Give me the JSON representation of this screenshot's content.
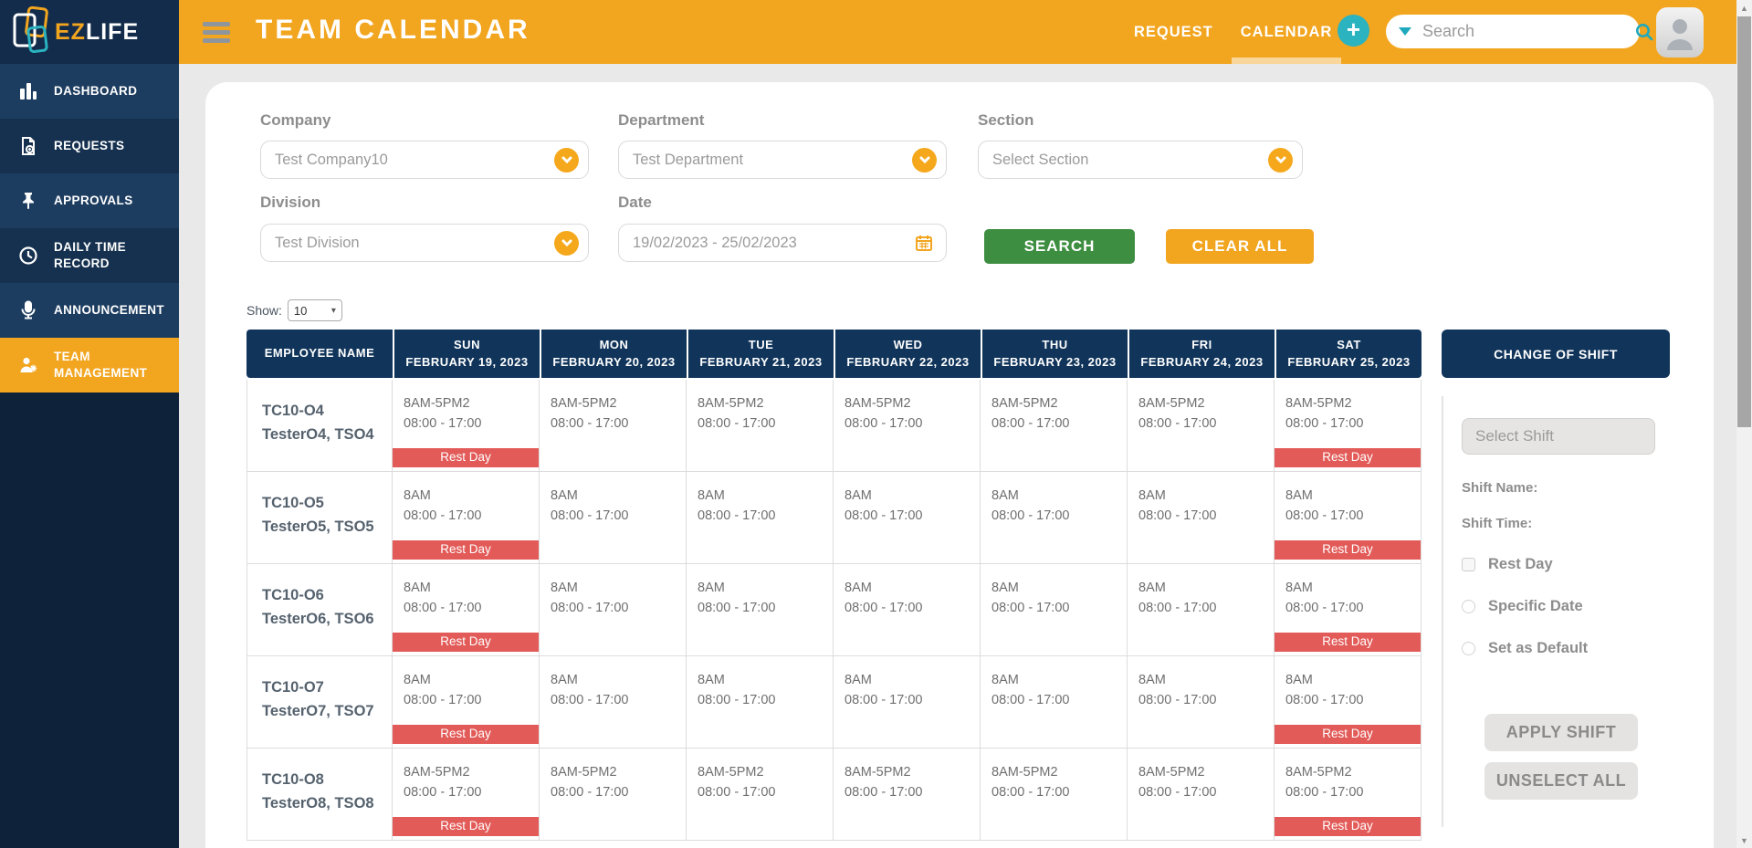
{
  "colors": {
    "orange": "#F2A51F",
    "navy": "#10345A",
    "teal": "#2BB3C0",
    "green": "#3E8E41",
    "red": "#E25B58",
    "sidebar_dark": "#0E2339"
  },
  "logo": {
    "ez": "EZ",
    "life": "LIFE"
  },
  "topbar": {
    "title": "TEAM CALENDAR",
    "nav": [
      {
        "label": "REQUEST",
        "active": false
      },
      {
        "label": "CALENDAR",
        "active": true
      }
    ],
    "add_button": "+",
    "search_placeholder": "Search"
  },
  "sidebar": {
    "items": [
      {
        "label": "DASHBOARD",
        "icon": "bar-chart-icon",
        "active": false
      },
      {
        "label": "REQUESTS",
        "icon": "document-add-icon",
        "active": false
      },
      {
        "label": "APPROVALS",
        "icon": "pin-icon",
        "active": false
      },
      {
        "label": "DAILY TIME RECORD",
        "icon": "clock-icon",
        "active": false
      },
      {
        "label": "ANNOUNCEMENT",
        "icon": "microphone-icon",
        "active": false
      },
      {
        "label": "TEAM MANAGEMENT",
        "icon": "user-gear-icon",
        "active": true
      }
    ]
  },
  "filters": {
    "company": {
      "label": "Company",
      "value": "Test Company10"
    },
    "department": {
      "label": "Department",
      "value": "Test Department"
    },
    "section": {
      "label": "Section",
      "value": "Select Section"
    },
    "division": {
      "label": "Division",
      "value": "Test Division"
    },
    "date": {
      "label": "Date",
      "value": "19/02/2023 - 25/02/2023"
    },
    "search_button": "SEARCH",
    "clear_button": "CLEAR ALL"
  },
  "show": {
    "label": "Show:",
    "value": "10"
  },
  "table": {
    "employee_header": "EMPLOYEE NAME",
    "rest_day_label": "Rest Day",
    "days": [
      {
        "day": "SUN",
        "date": "FEBRUARY 19, 2023"
      },
      {
        "day": "MON",
        "date": "FEBRUARY 20, 2023"
      },
      {
        "day": "TUE",
        "date": "FEBRUARY 21, 2023"
      },
      {
        "day": "WED",
        "date": "FEBRUARY 22, 2023"
      },
      {
        "day": "THU",
        "date": "FEBRUARY 23, 2023"
      },
      {
        "day": "FRI",
        "date": "FEBRUARY 24, 2023"
      },
      {
        "day": "SAT",
        "date": "FEBRUARY 25, 2023"
      }
    ],
    "rows": [
      {
        "id": "TC10-O4",
        "name": "TesterO4, TSO4",
        "cells": [
          {
            "shift": "8AM-5PM2",
            "time": "08:00 - 17:00",
            "rest_day": true
          },
          {
            "shift": "8AM-5PM2",
            "time": "08:00 - 17:00",
            "rest_day": false
          },
          {
            "shift": "8AM-5PM2",
            "time": "08:00 - 17:00",
            "rest_day": false
          },
          {
            "shift": "8AM-5PM2",
            "time": "08:00 - 17:00",
            "rest_day": false
          },
          {
            "shift": "8AM-5PM2",
            "time": "08:00 - 17:00",
            "rest_day": false
          },
          {
            "shift": "8AM-5PM2",
            "time": "08:00 - 17:00",
            "rest_day": false
          },
          {
            "shift": "8AM-5PM2",
            "time": "08:00 - 17:00",
            "rest_day": true
          }
        ]
      },
      {
        "id": "TC10-O5",
        "name": "TesterO5, TSO5",
        "cells": [
          {
            "shift": "8AM",
            "time": "08:00 - 17:00",
            "rest_day": true
          },
          {
            "shift": "8AM",
            "time": "08:00 - 17:00",
            "rest_day": false
          },
          {
            "shift": "8AM",
            "time": "08:00 - 17:00",
            "rest_day": false
          },
          {
            "shift": "8AM",
            "time": "08:00 - 17:00",
            "rest_day": false
          },
          {
            "shift": "8AM",
            "time": "08:00 - 17:00",
            "rest_day": false
          },
          {
            "shift": "8AM",
            "time": "08:00 - 17:00",
            "rest_day": false
          },
          {
            "shift": "8AM",
            "time": "08:00 - 17:00",
            "rest_day": true
          }
        ]
      },
      {
        "id": "TC10-O6",
        "name": "TesterO6, TSO6",
        "cells": [
          {
            "shift": "8AM",
            "time": "08:00 - 17:00",
            "rest_day": true
          },
          {
            "shift": "8AM",
            "time": "08:00 - 17:00",
            "rest_day": false
          },
          {
            "shift": "8AM",
            "time": "08:00 - 17:00",
            "rest_day": false
          },
          {
            "shift": "8AM",
            "time": "08:00 - 17:00",
            "rest_day": false
          },
          {
            "shift": "8AM",
            "time": "08:00 - 17:00",
            "rest_day": false
          },
          {
            "shift": "8AM",
            "time": "08:00 - 17:00",
            "rest_day": false
          },
          {
            "shift": "8AM",
            "time": "08:00 - 17:00",
            "rest_day": true
          }
        ]
      },
      {
        "id": "TC10-O7",
        "name": "TesterO7, TSO7",
        "cells": [
          {
            "shift": "8AM",
            "time": "08:00 - 17:00",
            "rest_day": true
          },
          {
            "shift": "8AM",
            "time": "08:00 - 17:00",
            "rest_day": false
          },
          {
            "shift": "8AM",
            "time": "08:00 - 17:00",
            "rest_day": false
          },
          {
            "shift": "8AM",
            "time": "08:00 - 17:00",
            "rest_day": false
          },
          {
            "shift": "8AM",
            "time": "08:00 - 17:00",
            "rest_day": false
          },
          {
            "shift": "8AM",
            "time": "08:00 - 17:00",
            "rest_day": false
          },
          {
            "shift": "8AM",
            "time": "08:00 - 17:00",
            "rest_day": true
          }
        ]
      },
      {
        "id": "TC10-O8",
        "name": "TesterO8, TSO8",
        "cells": [
          {
            "shift": "8AM-5PM2",
            "time": "08:00 - 17:00",
            "rest_day": true
          },
          {
            "shift": "8AM-5PM2",
            "time": "08:00 - 17:00",
            "rest_day": false
          },
          {
            "shift": "8AM-5PM2",
            "time": "08:00 - 17:00",
            "rest_day": false
          },
          {
            "shift": "8AM-5PM2",
            "time": "08:00 - 17:00",
            "rest_day": false
          },
          {
            "shift": "8AM-5PM2",
            "time": "08:00 - 17:00",
            "rest_day": false
          },
          {
            "shift": "8AM-5PM2",
            "time": "08:00 - 17:00",
            "rest_day": false
          },
          {
            "shift": "8AM-5PM2",
            "time": "08:00 - 17:00",
            "rest_day": true
          }
        ]
      }
    ]
  },
  "panel": {
    "title": "CHANGE OF SHIFT",
    "select_shift_placeholder": "Select Shift",
    "shift_name_label": "Shift Name:",
    "shift_time_label": "Shift Time:",
    "rest_day_label": "Rest Day",
    "specific_date_label": "Specific Date",
    "set_default_label": "Set as Default",
    "apply_button": "APPLY SHIFT",
    "unselect_button": "UNSELECT ALL"
  }
}
